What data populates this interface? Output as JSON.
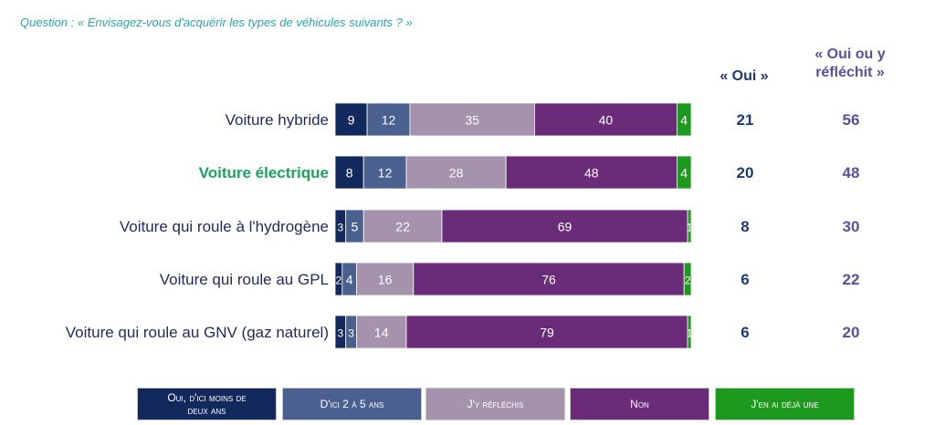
{
  "question": "Question : « Envisagez-vous d'acquérir les types de véhicules suivants ? »",
  "columns": {
    "oui": "« Oui »",
    "oui_ou_y_reflechit_line1": "« Oui ou y",
    "oui_ou_y_reflechit_line2": "réfléchit »"
  },
  "colors": {
    "oui_moins_deux_ans": "#12295e",
    "deux_a_cinq_ans": "#4a6190",
    "reflechis": "#a593ad",
    "non": "#6a2c78",
    "deja_une": "#1d9a1d",
    "highlight_label": "#1aa35a",
    "label": "#1f2a5c",
    "oui_col": "#1f3a73",
    "oui_ou_col": "#5a4f9e"
  },
  "legend": [
    {
      "label_line1": "Oui, d'ici moins de",
      "label_line2": "deux ans",
      "color_key": "oui_moins_deux_ans"
    },
    {
      "label_line1": "D'ici 2 à 5 ans",
      "label_line2": "",
      "color_key": "deux_a_cinq_ans"
    },
    {
      "label_line1": "J'y réfléchis",
      "label_line2": "",
      "color_key": "reflechis"
    },
    {
      "label_line1": "Non",
      "label_line2": "",
      "color_key": "non"
    },
    {
      "label_line1": "J'en ai déjà une",
      "label_line2": "",
      "color_key": "deja_une"
    }
  ],
  "chart_data": {
    "type": "bar",
    "stacked": true,
    "orientation": "horizontal",
    "categories": [
      "Voiture hybride",
      "Voiture électrique",
      "Voiture qui roule à l'hydrogène",
      "Voiture qui roule au GPL",
      "Voiture qui roule au GNV (gaz naturel)"
    ],
    "highlighted_category": "Voiture électrique",
    "series": [
      {
        "name": "Oui, d'ici moins de deux ans",
        "values": [
          9,
          8,
          3,
          2,
          3
        ]
      },
      {
        "name": "D'ici 2 à 5 ans",
        "values": [
          12,
          12,
          5,
          4,
          3
        ]
      },
      {
        "name": "J'y réfléchis",
        "values": [
          35,
          28,
          22,
          16,
          14
        ]
      },
      {
        "name": "Non",
        "values": [
          40,
          48,
          69,
          76,
          79
        ]
      },
      {
        "name": "J'en ai déjà une",
        "values": [
          4,
          4,
          1,
          2,
          1
        ]
      }
    ],
    "oui_totals": [
      21,
      20,
      8,
      6,
      6
    ],
    "oui_ou_y_reflechit_totals": [
      56,
      48,
      30,
      22,
      20
    ],
    "xlim": [
      0,
      100
    ],
    "grid": false,
    "legend_position": "bottom"
  }
}
